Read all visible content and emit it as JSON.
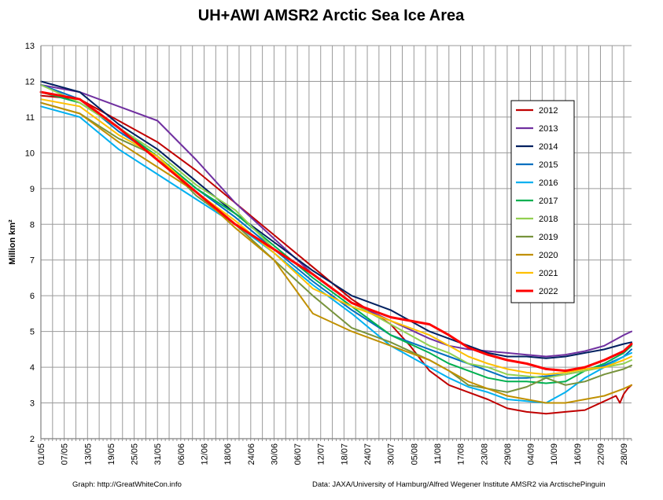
{
  "chart_data": {
    "type": "line",
    "title": "UH+AWI AMSR2 Arctic Sea Ice Area",
    "ylabel": "Million km²",
    "xlabel": "",
    "ylim": [
      2,
      13
    ],
    "yticks": [
      "2",
      "3",
      "4",
      "5",
      "6",
      "7",
      "8",
      "9",
      "10",
      "11",
      "12",
      "13"
    ],
    "x_day_range": [
      1,
      153
    ],
    "x_tick_labels": [
      "01/05",
      "07/05",
      "13/05",
      "19/05",
      "25/05",
      "31/05",
      "06/06",
      "12/06",
      "18/06",
      "24/06",
      "30/06",
      "06/07",
      "12/07",
      "18/07",
      "24/07",
      "30/07",
      "05/08",
      "11/08",
      "17/08",
      "23/08",
      "29/08",
      "04/09",
      "10/09",
      "16/09",
      "22/09",
      "28/09"
    ],
    "grid": true,
    "legend_position": "right",
    "series": [
      {
        "name": "2012",
        "color": "#C00000",
        "x": [
          1,
          11,
          21,
          31,
          41,
          51,
          61,
          71,
          81,
          91,
          96,
          101,
          106,
          111,
          116,
          121,
          126,
          131,
          136,
          141,
          146,
          149,
          150,
          151,
          152,
          153
        ],
        "values": [
          11.6,
          11.5,
          10.9,
          10.3,
          9.5,
          8.6,
          7.7,
          6.8,
          5.9,
          5.2,
          4.6,
          3.9,
          3.5,
          3.3,
          3.1,
          2.85,
          2.75,
          2.7,
          2.75,
          2.8,
          3.05,
          3.2,
          3.0,
          3.25,
          3.4,
          3.5
        ]
      },
      {
        "name": "2013",
        "color": "#7030A0",
        "x": [
          1,
          11,
          21,
          31,
          41,
          51,
          61,
          71,
          81,
          91,
          101,
          106,
          111,
          116,
          121,
          126,
          131,
          136,
          141,
          146,
          151,
          153
        ],
        "values": [
          11.9,
          11.7,
          11.3,
          10.9,
          9.8,
          8.6,
          7.6,
          6.6,
          5.8,
          5.3,
          4.8,
          4.6,
          4.5,
          4.45,
          4.4,
          4.35,
          4.3,
          4.35,
          4.45,
          4.6,
          4.9,
          5.0
        ]
      },
      {
        "name": "2014",
        "color": "#002060",
        "x": [
          1,
          11,
          21,
          31,
          41,
          51,
          61,
          71,
          81,
          91,
          101,
          106,
          111,
          116,
          121,
          126,
          131,
          136,
          141,
          146,
          151,
          153
        ],
        "values": [
          12.0,
          11.7,
          10.8,
          10.1,
          9.2,
          8.3,
          7.5,
          6.7,
          6.0,
          5.6,
          5.0,
          4.8,
          4.6,
          4.4,
          4.3,
          4.3,
          4.25,
          4.3,
          4.4,
          4.5,
          4.65,
          4.7
        ]
      },
      {
        "name": "2015",
        "color": "#0070C0",
        "x": [
          1,
          11,
          21,
          31,
          41,
          51,
          61,
          71,
          81,
          91,
          101,
          106,
          111,
          116,
          121,
          126,
          131,
          136,
          141,
          146,
          151,
          153
        ],
        "values": [
          11.9,
          11.5,
          10.6,
          9.9,
          9.0,
          8.2,
          7.3,
          6.4,
          5.6,
          4.9,
          4.5,
          4.3,
          4.1,
          3.9,
          3.7,
          3.7,
          3.75,
          3.8,
          3.9,
          4.05,
          4.3,
          4.5
        ]
      },
      {
        "name": "2016",
        "color": "#00B0F0",
        "x": [
          1,
          11,
          21,
          31,
          41,
          51,
          61,
          71,
          81,
          91,
          101,
          106,
          111,
          116,
          121,
          126,
          131,
          136,
          141,
          146,
          151,
          153
        ],
        "values": [
          11.3,
          11.0,
          10.1,
          9.4,
          8.7,
          8.0,
          7.2,
          6.3,
          5.5,
          4.6,
          4.0,
          3.7,
          3.45,
          3.3,
          3.1,
          3.05,
          3.0,
          3.3,
          3.7,
          4.0,
          4.3,
          4.4
        ]
      },
      {
        "name": "2017",
        "color": "#00B050",
        "x": [
          1,
          11,
          21,
          31,
          41,
          51,
          61,
          71,
          81,
          91,
          101,
          106,
          111,
          116,
          121,
          126,
          131,
          136,
          141,
          146,
          151,
          153
        ],
        "values": [
          11.7,
          11.4,
          10.7,
          9.9,
          9.0,
          8.3,
          7.4,
          6.5,
          5.7,
          4.9,
          4.4,
          4.1,
          3.9,
          3.7,
          3.6,
          3.6,
          3.55,
          3.6,
          3.9,
          4.1,
          4.4,
          4.6
        ]
      },
      {
        "name": "2018",
        "color": "#92D050",
        "x": [
          1,
          11,
          21,
          31,
          41,
          51,
          61,
          71,
          81,
          91,
          101,
          106,
          111,
          116,
          121,
          126,
          131,
          136,
          141,
          146,
          151,
          153
        ],
        "values": [
          11.9,
          11.4,
          10.7,
          10.0,
          9.1,
          8.4,
          7.3,
          6.6,
          5.8,
          5.2,
          4.6,
          4.4,
          4.1,
          4.0,
          3.8,
          3.75,
          3.7,
          3.8,
          3.9,
          4.0,
          4.1,
          4.2
        ]
      },
      {
        "name": "2019",
        "color": "#77933C",
        "x": [
          1,
          11,
          21,
          31,
          41,
          51,
          61,
          71,
          81,
          91,
          101,
          106,
          111,
          116,
          121,
          126,
          131,
          136,
          141,
          146,
          151,
          153
        ],
        "values": [
          11.4,
          11.1,
          10.4,
          9.9,
          8.8,
          8.0,
          7.0,
          6.0,
          5.1,
          4.7,
          4.2,
          3.9,
          3.5,
          3.4,
          3.3,
          3.45,
          3.7,
          3.5,
          3.6,
          3.8,
          3.95,
          4.05
        ]
      },
      {
        "name": "2020",
        "color": "#C09000",
        "x": [
          1,
          11,
          21,
          31,
          41,
          51,
          61,
          71,
          81,
          91,
          101,
          106,
          111,
          116,
          121,
          126,
          131,
          136,
          141,
          146,
          151,
          153
        ],
        "values": [
          11.4,
          11.1,
          10.3,
          9.6,
          8.9,
          7.9,
          7.0,
          5.5,
          5.0,
          4.6,
          4.2,
          3.9,
          3.6,
          3.4,
          3.2,
          3.1,
          3.0,
          3.0,
          3.1,
          3.2,
          3.4,
          3.5
        ]
      },
      {
        "name": "2021",
        "color": "#FFC000",
        "x": [
          1,
          11,
          21,
          31,
          41,
          51,
          61,
          71,
          81,
          91,
          101,
          106,
          111,
          116,
          121,
          126,
          131,
          136,
          141,
          146,
          151,
          153
        ],
        "values": [
          11.5,
          11.3,
          10.5,
          9.9,
          8.9,
          8.1,
          7.2,
          6.2,
          5.7,
          5.3,
          4.9,
          4.6,
          4.3,
          4.1,
          3.95,
          3.85,
          3.8,
          3.85,
          3.95,
          4.0,
          4.2,
          4.3
        ]
      },
      {
        "name": "2022",
        "color": "#FF0000",
        "x": [
          1,
          11,
          21,
          31,
          41,
          51,
          61,
          71,
          81,
          91,
          101,
          106,
          111,
          116,
          121,
          126,
          131,
          136,
          141,
          146,
          151,
          153
        ],
        "values": [
          11.7,
          11.5,
          10.7,
          9.8,
          8.9,
          8.0,
          7.3,
          6.6,
          5.8,
          5.4,
          5.2,
          4.9,
          4.55,
          4.35,
          4.2,
          4.1,
          3.95,
          3.9,
          4.0,
          4.2,
          4.45,
          4.65
        ]
      }
    ]
  },
  "footer": {
    "left": "Graph: http://GreatWhiteCon.info",
    "right": "Data: JAXA/University of Hamburg/Alfred Wegener Institute AMSR2 via ArctischePinguin"
  }
}
